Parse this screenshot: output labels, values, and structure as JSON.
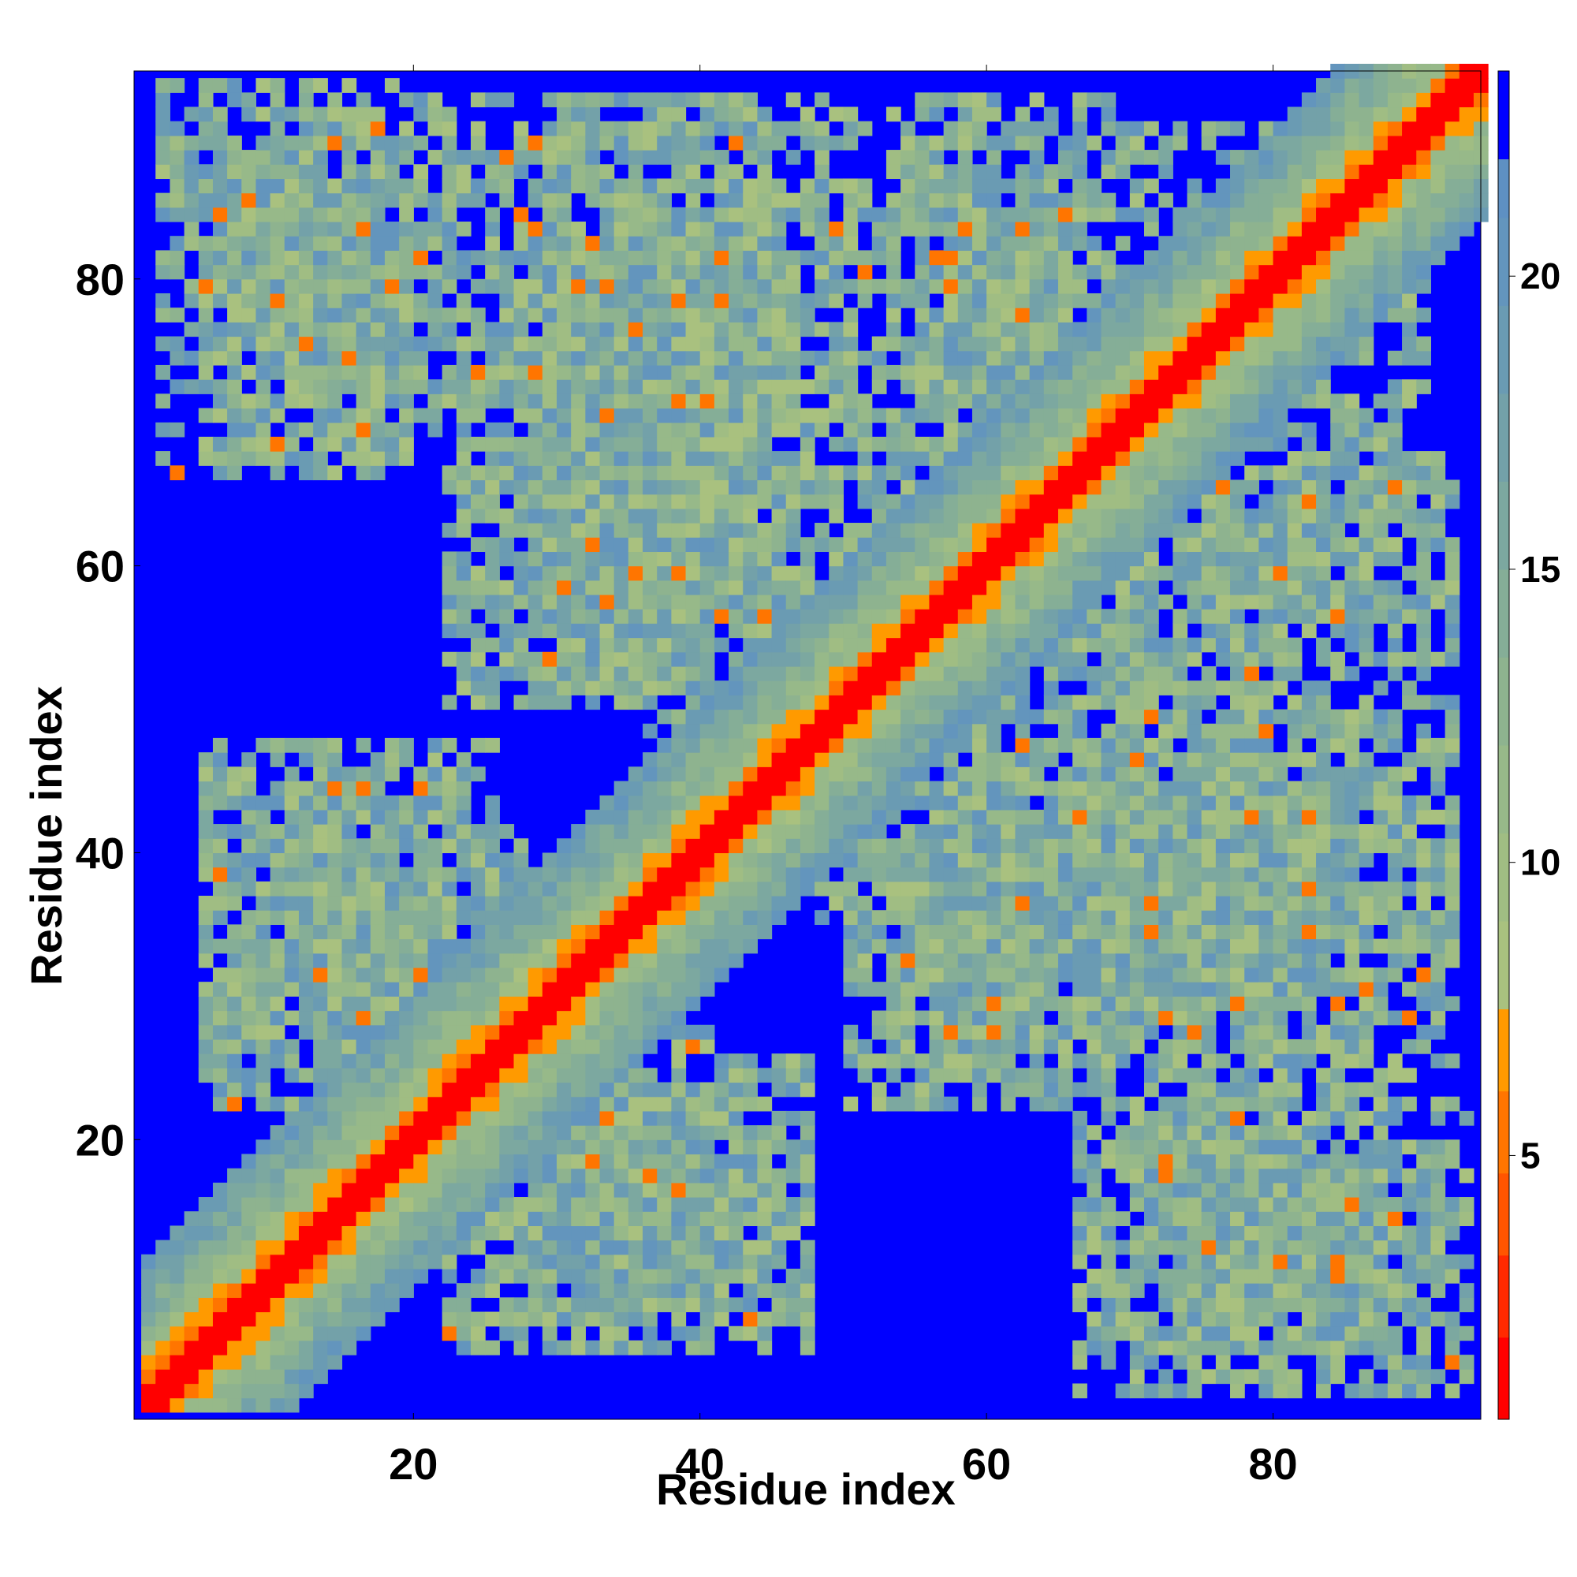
{
  "chart_data": {
    "type": "heatmap",
    "title": "",
    "xlabel": "Residue index",
    "ylabel": "Residue index",
    "n_residues": 94,
    "xlim": [
      1,
      94
    ],
    "ylim": [
      1,
      94
    ],
    "x_ticks": [
      20,
      40,
      60,
      80
    ],
    "y_ticks": [
      20,
      40,
      60,
      80
    ],
    "x_tick_labels": [
      "20",
      "40",
      "60",
      "80"
    ],
    "y_tick_labels": [
      "20",
      "40",
      "60",
      "80"
    ],
    "grid": false,
    "colorbar": {
      "placement": "right",
      "ticks": [
        5,
        10,
        15,
        20
      ],
      "tick_labels": [
        "5",
        "10",
        "15",
        "20"
      ],
      "range": [
        0.5,
        23.5
      ],
      "cutoff_above": 22,
      "segments": [
        {
          "from": 0.5,
          "to": 1.9,
          "color": "#ff0000"
        },
        {
          "from": 1.9,
          "to": 3.3,
          "color": "#ff2a00"
        },
        {
          "from": 3.3,
          "to": 4.7,
          "color": "#ff5500"
        },
        {
          "from": 4.7,
          "to": 6.1,
          "color": "#ff7500"
        },
        {
          "from": 6.1,
          "to": 7.5,
          "color": "#ff9a00"
        },
        {
          "from": 7.5,
          "to": 9.0,
          "color": "#a9c17f"
        },
        {
          "from": 9.0,
          "to": 10.5,
          "color": "#a0bd83"
        },
        {
          "from": 10.5,
          "to": 12.0,
          "color": "#97b989"
        },
        {
          "from": 12.0,
          "to": 13.5,
          "color": "#8eb38f"
        },
        {
          "from": 13.5,
          "to": 15.0,
          "color": "#85ae97"
        },
        {
          "from": 15.0,
          "to": 16.5,
          "color": "#7ca8a0"
        },
        {
          "from": 16.5,
          "to": 18.0,
          "color": "#73a1a9"
        },
        {
          "from": 18.0,
          "to": 19.5,
          "color": "#6a9bb3"
        },
        {
          "from": 19.5,
          "to": 21.0,
          "color": "#6395bd"
        },
        {
          "from": 21.0,
          "to": 22.0,
          "color": "#5e90c3"
        },
        {
          "from": 22.0,
          "to": 23.5,
          "color": "#0000ff"
        }
      ]
    },
    "colors": {
      "far": "#0000ff",
      "diagonal": "#ff0000",
      "near": "#ff8000",
      "mid": "#a3bf80",
      "outer": "#6393bf"
    },
    "blocks": [
      {
        "x": [
          1,
          94
        ],
        "y": [
          1,
          94
        ],
        "level": 1.0,
        "note": "diagonal band"
      },
      {
        "x": [
          2,
          22
        ],
        "y": [
          72,
          93
        ],
        "level": 0.8
      },
      {
        "x": [
          24,
          50
        ],
        "y": [
          50,
          92
        ],
        "level": 0.85
      },
      {
        "x": [
          53,
          68
        ],
        "y": [
          65,
          92
        ],
        "level": 0.8
      },
      {
        "x": [
          5,
          25
        ],
        "y": [
          22,
          47
        ],
        "level": 0.85
      },
      {
        "x": [
          22,
          42
        ],
        "y": [
          6,
          27
        ],
        "level": 0.8
      },
      {
        "x": [
          50,
          68
        ],
        "y": [
          22,
          48
        ],
        "level": 0.85
      },
      {
        "x": [
          66,
          89
        ],
        "y": [
          24,
          50
        ],
        "level": 0.85
      },
      {
        "x": [
          66,
          88
        ],
        "y": [
          2,
          25
        ],
        "level": 0.8
      },
      {
        "x": [
          48,
          90
        ],
        "y": [
          35,
          80
        ],
        "level": 0.6
      }
    ]
  }
}
